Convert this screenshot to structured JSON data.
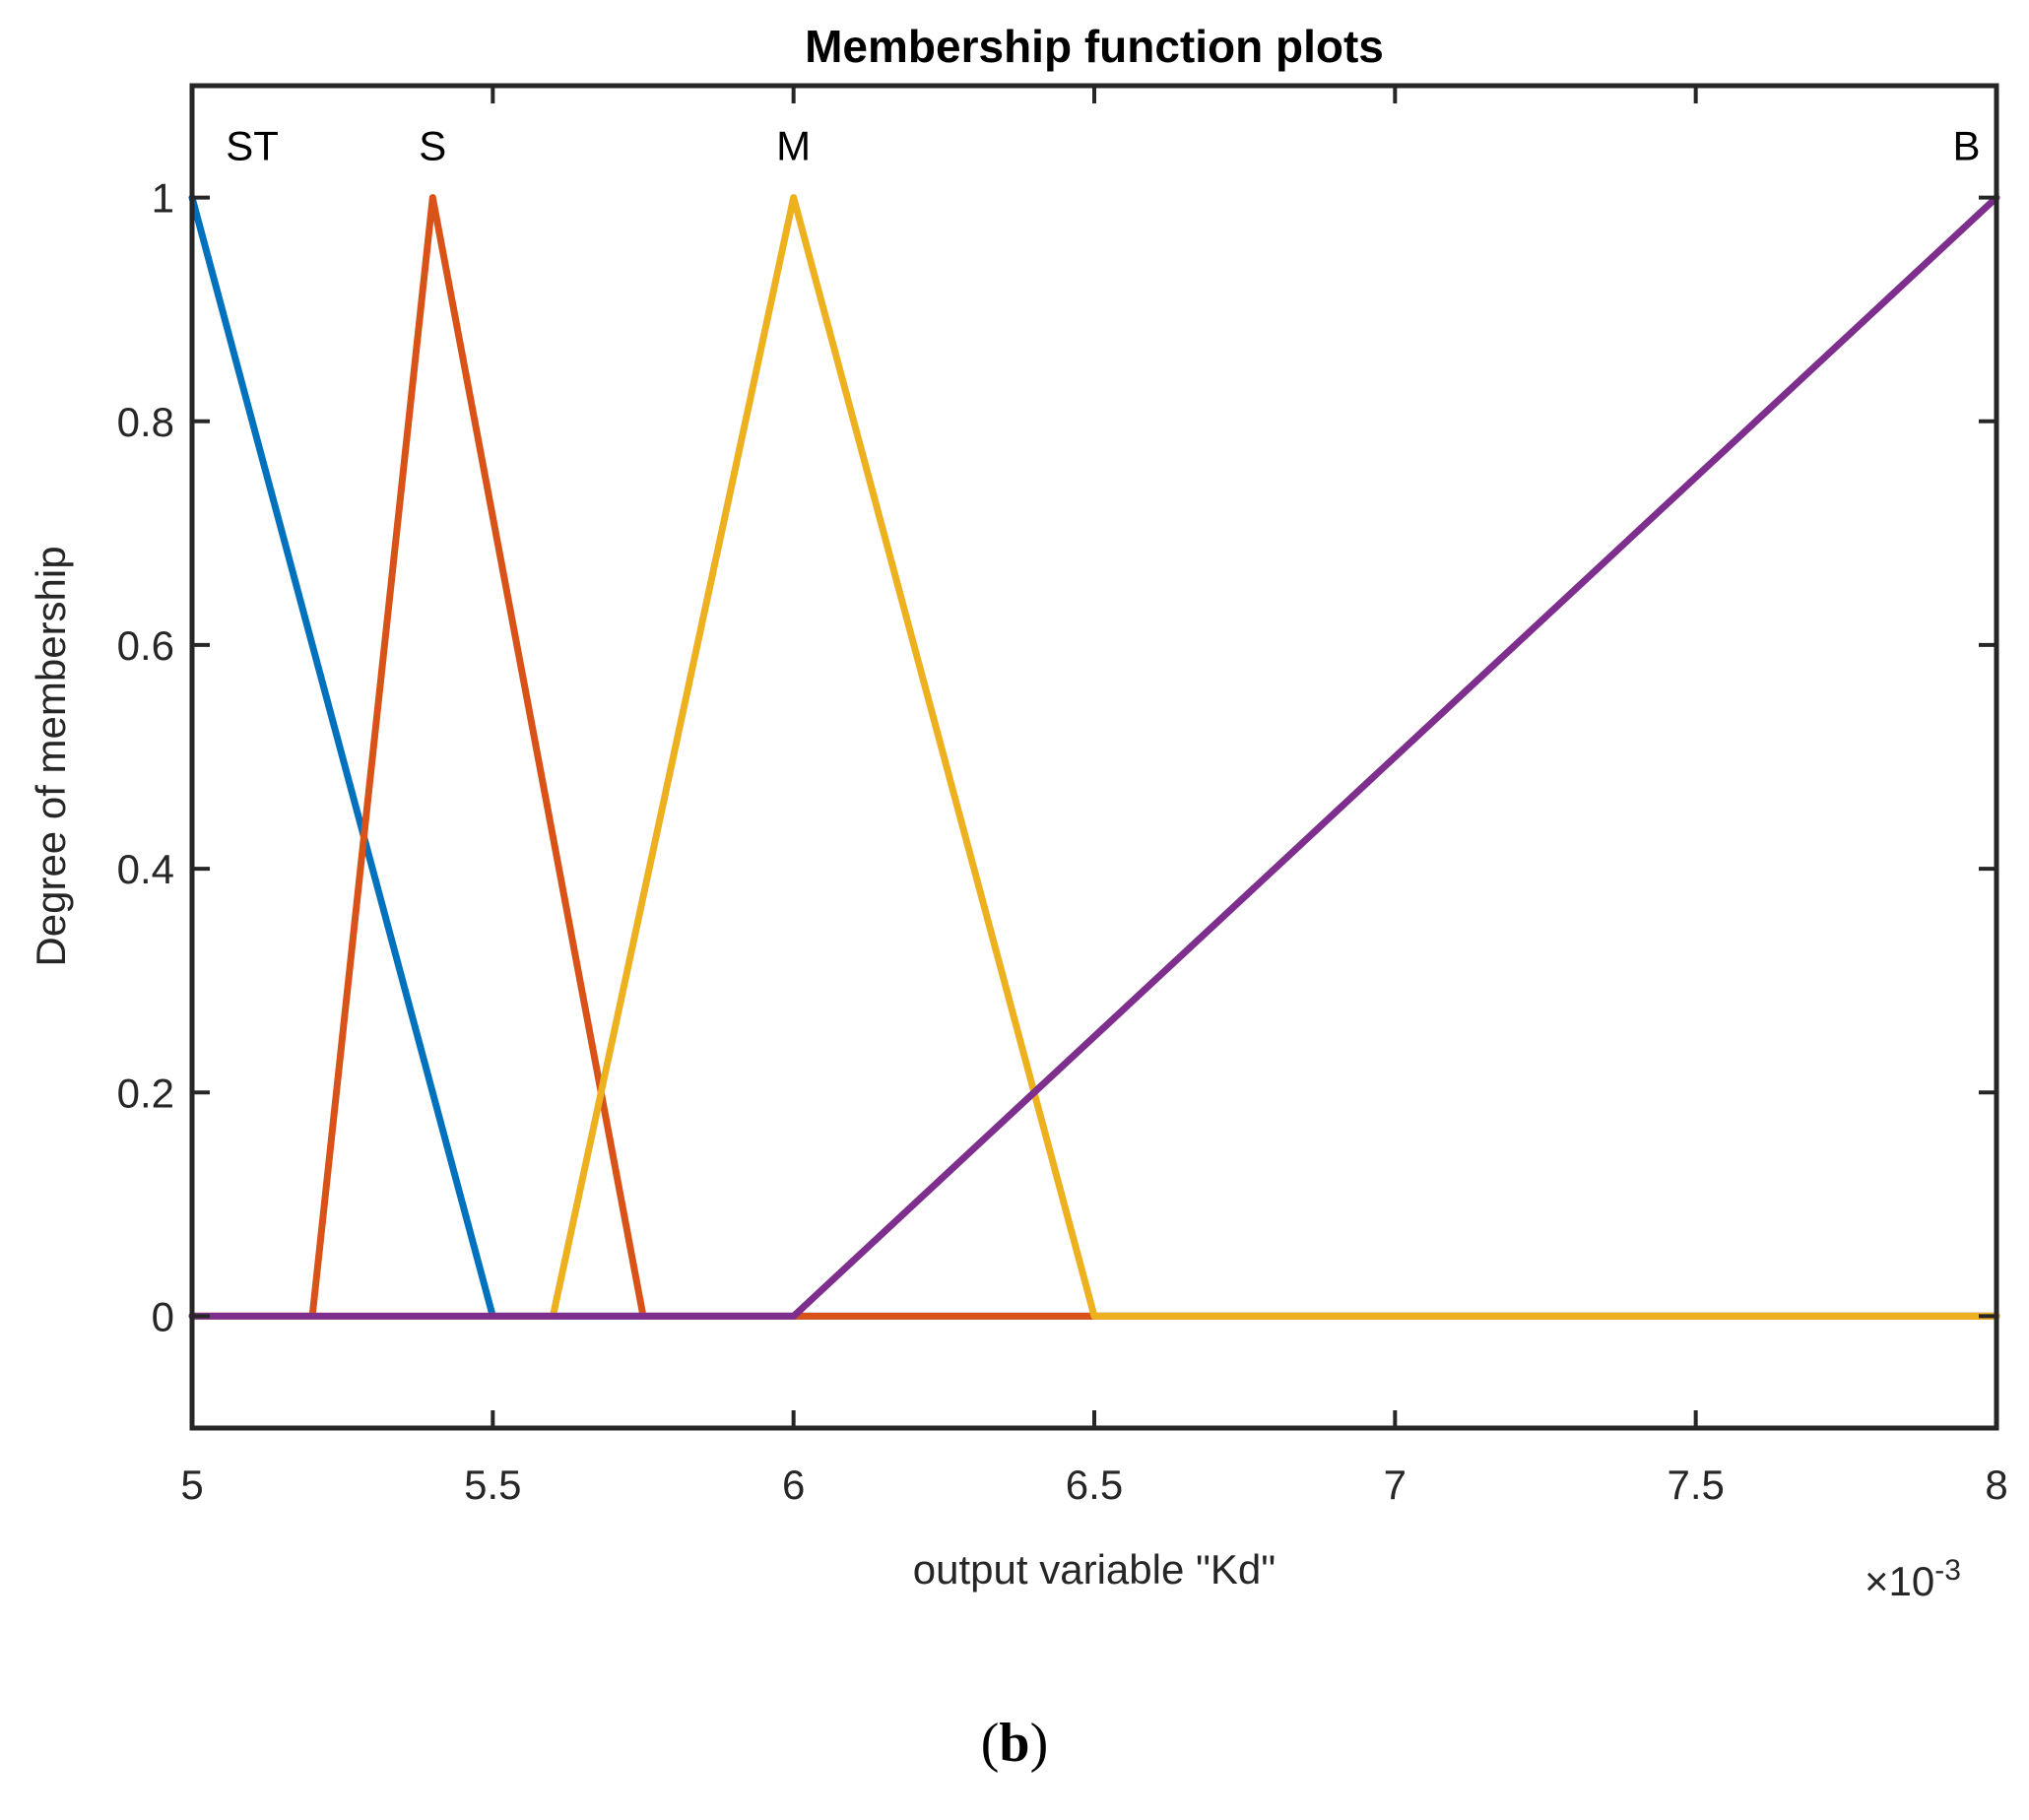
{
  "chart_data": {
    "type": "line",
    "title": "Membership function plots",
    "xlabel": "output variable \"Kd\"",
    "ylabel": "Degree of membership",
    "x_exponent_base": "×10",
    "x_exponent_power": "-3",
    "xlim": [
      5,
      8
    ],
    "ylim": [
      -0.1,
      1.1
    ],
    "x_ticks": [
      5,
      5.5,
      6,
      6.5,
      7,
      7.5,
      8
    ],
    "x_tick_labels": [
      "5",
      "5.5",
      "6",
      "6.5",
      "7",
      "7.5",
      "8"
    ],
    "y_ticks": [
      0,
      0.2,
      0.4,
      0.6,
      0.8,
      1
    ],
    "y_tick_labels": [
      "0",
      "0.2",
      "0.4",
      "0.6",
      "0.8",
      "1"
    ],
    "grid": false,
    "series": [
      {
        "name": "ST",
        "color": "#0072BD",
        "label_x": 5.1,
        "x": [
          5,
          5.5,
          8
        ],
        "y": [
          1,
          0,
          0
        ]
      },
      {
        "name": "S",
        "color": "#D95319",
        "label_x": 5.4,
        "x": [
          5,
          5.2,
          5.4,
          5.75,
          8
        ],
        "y": [
          0,
          0,
          1,
          0,
          0
        ]
      },
      {
        "name": "M",
        "color": "#EDB120",
        "label_x": 6.0,
        "x": [
          5,
          5.6,
          6.0,
          6.5,
          8
        ],
        "y": [
          0,
          0,
          1,
          0,
          0
        ]
      },
      {
        "name": "B",
        "color": "#7E2F8E",
        "label_x": 7.95,
        "x": [
          5,
          6.0,
          8
        ],
        "y": [
          0,
          0,
          1
        ]
      }
    ]
  },
  "caption": {
    "open": "(",
    "letter": "b",
    "close": ")"
  }
}
